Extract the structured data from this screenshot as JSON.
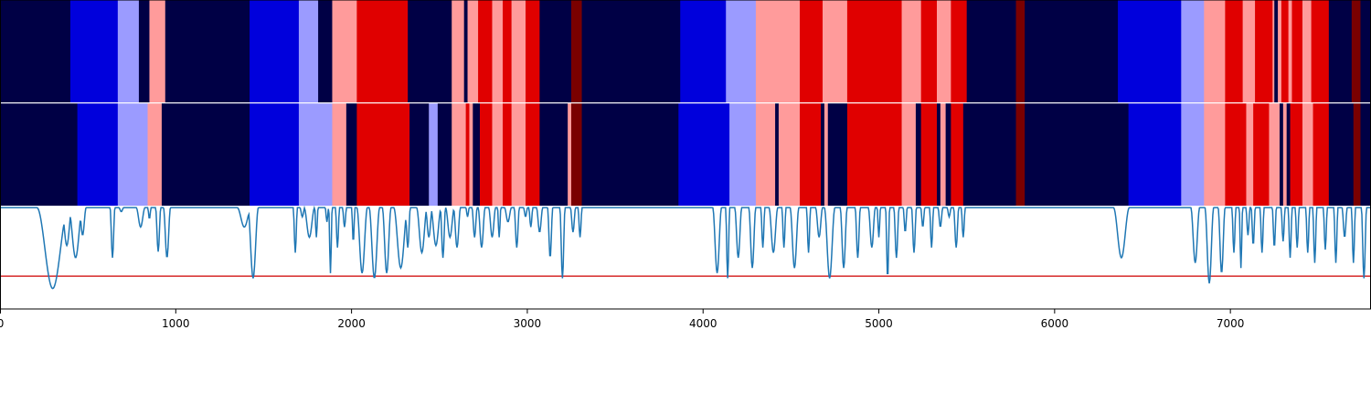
{
  "chart_data": {
    "type": "heatmap",
    "title": "",
    "xlim": [
      0,
      7800
    ],
    "x_ticks": [
      {
        "value": 0,
        "label": "0"
      },
      {
        "value": 1000,
        "label": "1000"
      },
      {
        "value": 2000,
        "label": "2000"
      },
      {
        "value": 3000,
        "label": "3000"
      },
      {
        "value": 4000,
        "label": "4000"
      },
      {
        "value": 5000,
        "label": "5000"
      },
      {
        "value": 6000,
        "label": "6000"
      },
      {
        "value": 7000,
        "label": "7000"
      }
    ],
    "colors": {
      "0": "#000045",
      "1": "#0000dc",
      "2": "#9b9bff",
      "3": "#ff9b9b",
      "4": "#e00000",
      "5": "#7a0000",
      "separator": "#ffffff",
      "confidence_line": "#1f77b4",
      "threshold_line": "#d62728"
    },
    "rows": [
      {
        "segments": [
          [
            0,
            400,
            0
          ],
          [
            400,
            670,
            1
          ],
          [
            670,
            790,
            2
          ],
          [
            790,
            850,
            0
          ],
          [
            850,
            940,
            3
          ],
          [
            940,
            1420,
            0
          ],
          [
            1420,
            1700,
            1
          ],
          [
            1700,
            1810,
            2
          ],
          [
            1810,
            1890,
            0
          ],
          [
            1890,
            2030,
            3
          ],
          [
            2030,
            2320,
            4
          ],
          [
            2320,
            2570,
            0
          ],
          [
            2570,
            2640,
            3
          ],
          [
            2640,
            2660,
            0
          ],
          [
            2660,
            2720,
            3
          ],
          [
            2720,
            2800,
            4
          ],
          [
            2800,
            2860,
            3
          ],
          [
            2860,
            2910,
            4
          ],
          [
            2910,
            2990,
            3
          ],
          [
            2990,
            3070,
            4
          ],
          [
            3070,
            3250,
            0
          ],
          [
            3250,
            3310,
            5
          ],
          [
            3310,
            3870,
            0
          ],
          [
            3870,
            4130,
            1
          ],
          [
            4130,
            4300,
            2
          ],
          [
            4300,
            4550,
            3
          ],
          [
            4550,
            4680,
            4
          ],
          [
            4680,
            4820,
            3
          ],
          [
            4820,
            5130,
            4
          ],
          [
            5130,
            5240,
            3
          ],
          [
            5240,
            5330,
            4
          ],
          [
            5330,
            5410,
            3
          ],
          [
            5410,
            5500,
            4
          ],
          [
            5500,
            5780,
            0
          ],
          [
            5780,
            5830,
            5
          ],
          [
            5830,
            6360,
            0
          ],
          [
            6360,
            6720,
            1
          ],
          [
            6720,
            6850,
            2
          ],
          [
            6850,
            6970,
            3
          ],
          [
            6970,
            7070,
            4
          ],
          [
            7070,
            7140,
            3
          ],
          [
            7140,
            7240,
            4
          ],
          [
            7240,
            7250,
            3
          ],
          [
            7250,
            7270,
            0
          ],
          [
            7270,
            7290,
            3
          ],
          [
            7290,
            7330,
            4
          ],
          [
            7330,
            7350,
            3
          ],
          [
            7350,
            7410,
            4
          ],
          [
            7410,
            7460,
            3
          ],
          [
            7460,
            7560,
            4
          ],
          [
            7560,
            7690,
            0
          ],
          [
            7690,
            7740,
            5
          ],
          [
            7740,
            7800,
            0
          ]
        ]
      },
      {
        "segments": [
          [
            0,
            440,
            0
          ],
          [
            440,
            670,
            1
          ],
          [
            670,
            840,
            2
          ],
          [
            840,
            920,
            3
          ],
          [
            920,
            1420,
            0
          ],
          [
            1420,
            1700,
            1
          ],
          [
            1700,
            1890,
            2
          ],
          [
            1890,
            1970,
            3
          ],
          [
            1970,
            2030,
            0
          ],
          [
            2030,
            2330,
            4
          ],
          [
            2330,
            2440,
            0
          ],
          [
            2440,
            2490,
            2
          ],
          [
            2490,
            2570,
            0
          ],
          [
            2570,
            2650,
            3
          ],
          [
            2650,
            2670,
            4
          ],
          [
            2670,
            2690,
            3
          ],
          [
            2690,
            2730,
            0
          ],
          [
            2730,
            2800,
            4
          ],
          [
            2800,
            2860,
            3
          ],
          [
            2860,
            2910,
            4
          ],
          [
            2910,
            2990,
            3
          ],
          [
            2990,
            3070,
            4
          ],
          [
            3070,
            3230,
            0
          ],
          [
            3230,
            3250,
            3
          ],
          [
            3250,
            3310,
            5
          ],
          [
            3310,
            3860,
            0
          ],
          [
            3860,
            4150,
            1
          ],
          [
            4150,
            4300,
            2
          ],
          [
            4300,
            4410,
            3
          ],
          [
            4410,
            4430,
            0
          ],
          [
            4430,
            4550,
            3
          ],
          [
            4550,
            4670,
            4
          ],
          [
            4670,
            4690,
            0
          ],
          [
            4690,
            4710,
            3
          ],
          [
            4710,
            4820,
            0
          ],
          [
            4820,
            5130,
            4
          ],
          [
            5130,
            5210,
            3
          ],
          [
            5210,
            5240,
            0
          ],
          [
            5240,
            5330,
            4
          ],
          [
            5330,
            5350,
            0
          ],
          [
            5350,
            5380,
            3
          ],
          [
            5380,
            5410,
            0
          ],
          [
            5410,
            5480,
            4
          ],
          [
            5480,
            5780,
            0
          ],
          [
            5780,
            5830,
            5
          ],
          [
            5830,
            6420,
            0
          ],
          [
            6420,
            6720,
            1
          ],
          [
            6720,
            6850,
            2
          ],
          [
            6850,
            6970,
            3
          ],
          [
            6970,
            7090,
            4
          ],
          [
            7090,
            7130,
            3
          ],
          [
            7130,
            7220,
            4
          ],
          [
            7220,
            7280,
            3
          ],
          [
            7280,
            7300,
            0
          ],
          [
            7300,
            7320,
            3
          ],
          [
            7320,
            7340,
            0
          ],
          [
            7340,
            7410,
            4
          ],
          [
            7410,
            7470,
            3
          ],
          [
            7470,
            7560,
            4
          ],
          [
            7560,
            7700,
            0
          ],
          [
            7700,
            7740,
            5
          ],
          [
            7740,
            7800,
            0
          ]
        ]
      }
    ],
    "line_panel": {
      "ylim": [
        0,
        1
      ],
      "threshold": 0.32,
      "baseline": 0.99,
      "dips": [
        [
          300,
          90,
          0.2
        ],
        [
          330,
          40,
          0.45
        ],
        [
          380,
          30,
          0.62
        ],
        [
          430,
          40,
          0.5
        ],
        [
          470,
          20,
          0.72
        ],
        [
          640,
          14,
          0.5
        ],
        [
          690,
          14,
          0.95
        ],
        [
          800,
          25,
          0.8
        ],
        [
          850,
          10,
          0.88
        ],
        [
          900,
          15,
          0.56
        ],
        [
          950,
          20,
          0.5
        ],
        [
          1390,
          40,
          0.8
        ],
        [
          1440,
          30,
          0.3
        ],
        [
          1680,
          12,
          0.55
        ],
        [
          1720,
          14,
          0.9
        ],
        [
          1760,
          30,
          0.7
        ],
        [
          1800,
          10,
          0.7
        ],
        [
          1860,
          10,
          0.85
        ],
        [
          1880,
          10,
          0.35
        ],
        [
          1920,
          12,
          0.6
        ],
        [
          1960,
          12,
          0.8
        ],
        [
          2010,
          10,
          0.65
        ],
        [
          2060,
          30,
          0.35
        ],
        [
          2130,
          30,
          0.3
        ],
        [
          2200,
          25,
          0.35
        ],
        [
          2280,
          40,
          0.4
        ],
        [
          2320,
          15,
          0.6
        ],
        [
          2400,
          30,
          0.55
        ],
        [
          2440,
          20,
          0.7
        ],
        [
          2480,
          30,
          0.62
        ],
        [
          2520,
          15,
          0.5
        ],
        [
          2560,
          25,
          0.7
        ],
        [
          2600,
          20,
          0.6
        ],
        [
          2660,
          10,
          0.9
        ],
        [
          2700,
          15,
          0.7
        ],
        [
          2740,
          20,
          0.6
        ],
        [
          2800,
          20,
          0.7
        ],
        [
          2840,
          10,
          0.7
        ],
        [
          2890,
          20,
          0.85
        ],
        [
          2940,
          15,
          0.6
        ],
        [
          2990,
          12,
          0.9
        ],
        [
          3020,
          12,
          0.8
        ],
        [
          3070,
          18,
          0.75
        ],
        [
          3130,
          15,
          0.5
        ],
        [
          3200,
          15,
          0.3
        ],
        [
          3260,
          15,
          0.75
        ],
        [
          3300,
          12,
          0.7
        ],
        [
          4080,
          25,
          0.35
        ],
        [
          4140,
          12,
          0.3
        ],
        [
          4200,
          20,
          0.5
        ],
        [
          4280,
          20,
          0.4
        ],
        [
          4340,
          12,
          0.6
        ],
        [
          4400,
          25,
          0.55
        ],
        [
          4460,
          12,
          0.6
        ],
        [
          4520,
          25,
          0.4
        ],
        [
          4600,
          12,
          0.55
        ],
        [
          4660,
          20,
          0.7
        ],
        [
          4720,
          30,
          0.3
        ],
        [
          4800,
          20,
          0.4
        ],
        [
          4880,
          15,
          0.5
        ],
        [
          4960,
          20,
          0.6
        ],
        [
          5000,
          10,
          0.7
        ],
        [
          5050,
          12,
          0.3
        ],
        [
          5100,
          15,
          0.5
        ],
        [
          5150,
          12,
          0.75
        ],
        [
          5200,
          14,
          0.55
        ],
        [
          5250,
          12,
          0.8
        ],
        [
          5300,
          12,
          0.6
        ],
        [
          5350,
          14,
          0.8
        ],
        [
          5400,
          12,
          0.9
        ],
        [
          5440,
          15,
          0.6
        ],
        [
          5480,
          12,
          0.7
        ],
        [
          6380,
          45,
          0.5
        ],
        [
          6800,
          25,
          0.45
        ],
        [
          6880,
          25,
          0.25
        ],
        [
          6950,
          20,
          0.35
        ],
        [
          7020,
          12,
          0.55
        ],
        [
          7060,
          10,
          0.4
        ],
        [
          7100,
          12,
          0.72
        ],
        [
          7130,
          12,
          0.62
        ],
        [
          7180,
          12,
          0.55
        ],
        [
          7250,
          12,
          0.6
        ],
        [
          7300,
          12,
          0.66
        ],
        [
          7340,
          12,
          0.5
        ],
        [
          7380,
          12,
          0.6
        ],
        [
          7440,
          12,
          0.55
        ],
        [
          7480,
          12,
          0.45
        ],
        [
          7540,
          12,
          0.58
        ],
        [
          7600,
          12,
          0.45
        ],
        [
          7650,
          15,
          0.7
        ],
        [
          7700,
          12,
          0.45
        ],
        [
          7760,
          15,
          0.3
        ]
      ]
    }
  }
}
